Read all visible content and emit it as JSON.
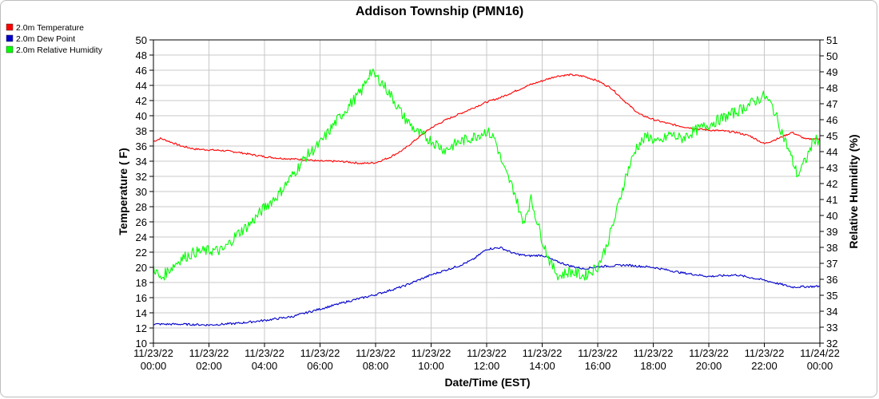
{
  "chart_data": {
    "type": "line",
    "title": "Addison Township (PMN16)",
    "xlabel": "Date/Time (EST)",
    "ylabel": "Temperature ( F)",
    "y2label": "Relative Humidity (%)",
    "ylim": [
      10,
      50
    ],
    "y2lim": [
      32,
      51
    ],
    "y_ticks": [
      "10",
      "12",
      "14",
      "16",
      "18",
      "20",
      "22",
      "24",
      "26",
      "28",
      "30",
      "32",
      "34",
      "36",
      "38",
      "40",
      "42",
      "44",
      "46",
      "48",
      "50"
    ],
    "y2_ticks": [
      "32",
      "33",
      "34",
      "35",
      "36",
      "37",
      "38",
      "39",
      "40",
      "41",
      "42",
      "43",
      "44",
      "45",
      "46",
      "47",
      "48",
      "49",
      "50",
      "51"
    ],
    "x_ticks": [
      {
        "date": "11/23/22",
        "time": "00:00"
      },
      {
        "date": "11/23/22",
        "time": "02:00"
      },
      {
        "date": "11/23/22",
        "time": "04:00"
      },
      {
        "date": "11/23/22",
        "time": "06:00"
      },
      {
        "date": "11/23/22",
        "time": "08:00"
      },
      {
        "date": "11/23/22",
        "time": "10:00"
      },
      {
        "date": "11/23/22",
        "time": "12:00"
      },
      {
        "date": "11/23/22",
        "time": "14:00"
      },
      {
        "date": "11/23/22",
        "time": "16:00"
      },
      {
        "date": "11/23/22",
        "time": "18:00"
      },
      {
        "date": "11/23/22",
        "time": "20:00"
      },
      {
        "date": "11/23/22",
        "time": "22:00"
      },
      {
        "date": "11/24/22",
        "time": "00:00"
      }
    ],
    "legend_position": "top-left",
    "grid": true,
    "series": [
      {
        "name": "2.0m Temperature",
        "color": "#ff0000",
        "axis": "left",
        "points": [
          [
            0,
            36.6
          ],
          [
            0.25,
            37.0
          ],
          [
            0.5,
            36.7
          ],
          [
            1,
            36.0
          ],
          [
            1.5,
            35.6
          ],
          [
            2,
            35.5
          ],
          [
            2.5,
            35.4
          ],
          [
            3,
            35.2
          ],
          [
            3.5,
            34.9
          ],
          [
            4,
            34.6
          ],
          [
            4.5,
            34.4
          ],
          [
            5,
            34.3
          ],
          [
            5.5,
            34.2
          ],
          [
            6,
            34.0
          ],
          [
            6.5,
            34.0
          ],
          [
            7,
            33.9
          ],
          [
            7.5,
            33.7
          ],
          [
            8,
            33.8
          ],
          [
            8.5,
            34.5
          ],
          [
            9,
            35.5
          ],
          [
            9.5,
            37.0
          ],
          [
            10,
            38.4
          ],
          [
            10.5,
            39.4
          ],
          [
            11,
            40.2
          ],
          [
            11.5,
            41.0
          ],
          [
            12,
            41.8
          ],
          [
            12.5,
            42.4
          ],
          [
            13,
            43.2
          ],
          [
            13.5,
            44.0
          ],
          [
            14,
            44.6
          ],
          [
            14.5,
            45.2
          ],
          [
            15,
            45.4
          ],
          [
            15.5,
            45.2
          ],
          [
            16,
            44.6
          ],
          [
            16.5,
            43.6
          ],
          [
            17,
            41.8
          ],
          [
            17.5,
            40.2
          ],
          [
            18,
            39.5
          ],
          [
            18.5,
            39.0
          ],
          [
            19,
            38.6
          ],
          [
            19.5,
            38.3
          ],
          [
            20,
            38.1
          ],
          [
            20.5,
            38.0
          ],
          [
            21,
            37.8
          ],
          [
            21.5,
            37.3
          ],
          [
            22,
            36.3
          ],
          [
            22.5,
            37.0
          ],
          [
            23,
            37.8
          ],
          [
            23.5,
            36.9
          ],
          [
            24,
            37.0
          ]
        ]
      },
      {
        "name": "2.0m Dew Point",
        "color": "#0000cc",
        "axis": "left",
        "points": [
          [
            0,
            12.5
          ],
          [
            1,
            12.5
          ],
          [
            2,
            12.4
          ],
          [
            3,
            12.6
          ],
          [
            4,
            13.0
          ],
          [
            5,
            13.5
          ],
          [
            6,
            14.5
          ],
          [
            7,
            15.5
          ],
          [
            8,
            16.4
          ],
          [
            9,
            17.5
          ],
          [
            10,
            19.0
          ],
          [
            11,
            20.2
          ],
          [
            11.5,
            21.0
          ],
          [
            12,
            22.4
          ],
          [
            12.5,
            22.6
          ],
          [
            13,
            21.8
          ],
          [
            13.5,
            21.5
          ],
          [
            14,
            21.6
          ],
          [
            14.5,
            20.8
          ],
          [
            15,
            20.2
          ],
          [
            15.5,
            19.8
          ],
          [
            16,
            20.1
          ],
          [
            16.5,
            20.2
          ],
          [
            17,
            20.3
          ],
          [
            18,
            20.0
          ],
          [
            19,
            19.3
          ],
          [
            20,
            18.8
          ],
          [
            21,
            19.0
          ],
          [
            22,
            18.3
          ],
          [
            23,
            17.4
          ],
          [
            24,
            17.5
          ]
        ]
      },
      {
        "name": "2.0m Relative Humidity",
        "color": "#00ff00",
        "axis": "right",
        "points": [
          [
            0,
            36.8
          ],
          [
            0.25,
            36.0
          ],
          [
            0.5,
            36.5
          ],
          [
            1,
            37.3
          ],
          [
            1.5,
            37.7
          ],
          [
            2,
            37.8
          ],
          [
            2.5,
            37.8
          ],
          [
            3,
            38.8
          ],
          [
            3.5,
            39.5
          ],
          [
            4,
            40.5
          ],
          [
            4.5,
            41.3
          ],
          [
            5,
            42.5
          ],
          [
            5.5,
            43.7
          ],
          [
            6,
            44.5
          ],
          [
            6.5,
            45.7
          ],
          [
            7,
            46.8
          ],
          [
            7.5,
            47.8
          ],
          [
            7.8,
            49.0
          ],
          [
            8.2,
            48.4
          ],
          [
            8.6,
            47.4
          ],
          [
            9,
            46.2
          ],
          [
            9.5,
            45.2
          ],
          [
            10,
            44.7
          ],
          [
            10.5,
            44.1
          ],
          [
            11,
            44.6
          ],
          [
            11.5,
            44.9
          ],
          [
            12,
            45.3
          ],
          [
            12.3,
            44.8
          ],
          [
            12.6,
            43.0
          ],
          [
            13,
            41.5
          ],
          [
            13.3,
            39.5
          ],
          [
            13.6,
            41.0
          ],
          [
            14,
            38.5
          ],
          [
            14.3,
            37.0
          ],
          [
            14.6,
            36.2
          ],
          [
            15,
            36.5
          ],
          [
            15.5,
            36.2
          ],
          [
            16,
            36.8
          ],
          [
            16.3,
            38.0
          ],
          [
            16.6,
            39.7
          ],
          [
            17,
            42.4
          ],
          [
            17.4,
            44.3
          ],
          [
            17.8,
            45.0
          ],
          [
            18.2,
            44.5
          ],
          [
            18.6,
            45.1
          ],
          [
            19,
            44.8
          ],
          [
            19.5,
            45.3
          ],
          [
            20,
            45.7
          ],
          [
            20.5,
            46.1
          ],
          [
            21,
            46.5
          ],
          [
            21.5,
            47.0
          ],
          [
            22,
            47.5
          ],
          [
            22.3,
            46.8
          ],
          [
            22.6,
            45.4
          ],
          [
            23,
            43.5
          ],
          [
            23.2,
            42.5
          ],
          [
            23.5,
            43.5
          ],
          [
            23.8,
            44.8
          ],
          [
            24,
            44.7
          ]
        ]
      }
    ]
  }
}
